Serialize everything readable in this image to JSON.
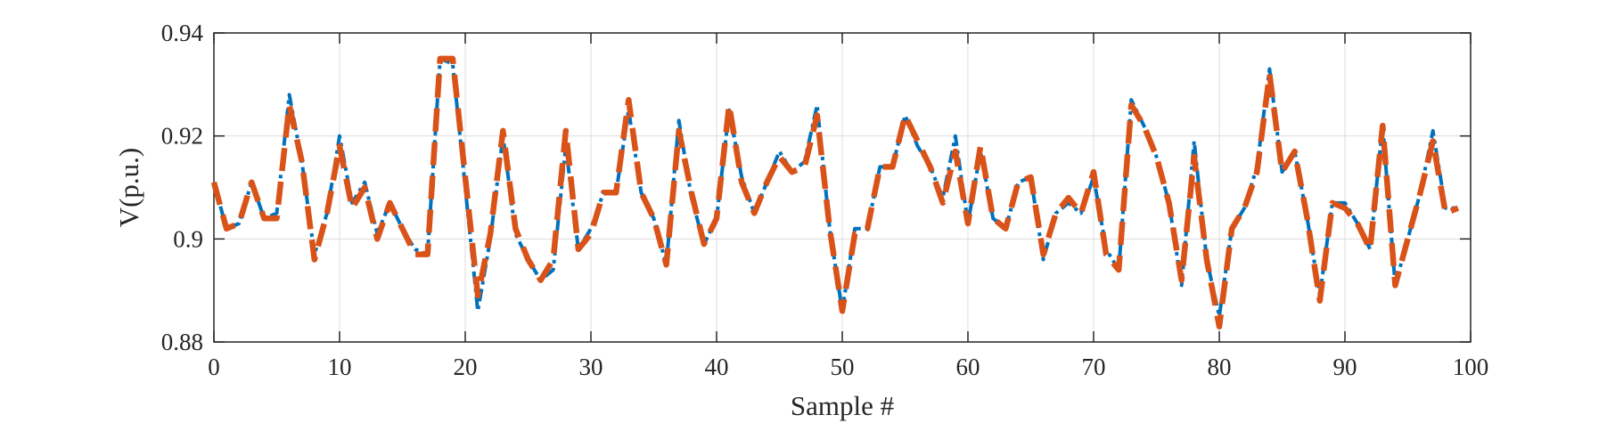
{
  "chart_data": {
    "type": "line",
    "title": "",
    "xlabel": "Sample #",
    "ylabel": "V(p.u.)",
    "xlim": [
      0,
      100
    ],
    "ylim": [
      0.88,
      0.94
    ],
    "xticks": [
      0,
      10,
      20,
      30,
      40,
      50,
      60,
      70,
      80,
      90,
      100
    ],
    "xtick_labels": [
      "0",
      "10",
      "20",
      "30",
      "40",
      "50",
      "60",
      "70",
      "80",
      "90",
      "100"
    ],
    "yticks": [
      0.88,
      0.9,
      0.92,
      0.94
    ],
    "ytick_labels": [
      "0.88",
      "0.9",
      "0.92",
      "0.94"
    ],
    "grid": true,
    "legend": "none",
    "x": [
      0,
      1,
      2,
      3,
      4,
      5,
      6,
      7,
      8,
      9,
      10,
      11,
      12,
      13,
      14,
      15,
      16,
      17,
      18,
      19,
      20,
      21,
      22,
      23,
      24,
      25,
      26,
      27,
      28,
      29,
      30,
      31,
      32,
      33,
      34,
      35,
      36,
      37,
      38,
      39,
      40,
      41,
      42,
      43,
      44,
      45,
      46,
      47,
      48,
      49,
      50,
      51,
      52,
      53,
      54,
      55,
      56,
      57,
      58,
      59,
      60,
      61,
      62,
      63,
      64,
      65,
      66,
      67,
      68,
      69,
      70,
      71,
      72,
      73,
      74,
      75,
      76,
      77,
      78,
      79,
      80,
      81,
      82,
      83,
      84,
      85,
      86,
      87,
      88,
      89,
      90,
      91,
      92,
      93,
      94,
      95,
      96,
      97,
      98,
      99
    ],
    "series": [
      {
        "color": "#0072BD",
        "linestyle": "dash-dot",
        "values": [
          0.911,
          0.902,
          0.903,
          0.911,
          0.904,
          0.905,
          0.928,
          0.915,
          0.897,
          0.905,
          0.92,
          0.907,
          0.911,
          0.901,
          0.907,
          0.902,
          0.898,
          0.897,
          0.935,
          0.934,
          0.91,
          0.886,
          0.9,
          0.92,
          0.901,
          0.896,
          0.892,
          0.894,
          0.918,
          0.898,
          0.902,
          0.909,
          0.909,
          0.925,
          0.909,
          0.904,
          0.895,
          0.923,
          0.908,
          0.899,
          0.904,
          0.925,
          0.912,
          0.905,
          0.911,
          0.917,
          0.913,
          0.915,
          0.926,
          0.902,
          0.886,
          0.902,
          0.902,
          0.914,
          0.914,
          0.924,
          0.918,
          0.914,
          0.908,
          0.92,
          0.903,
          0.917,
          0.904,
          0.902,
          0.911,
          0.912,
          0.896,
          0.905,
          0.907,
          0.905,
          0.912,
          0.898,
          0.894,
          0.927,
          0.922,
          0.916,
          0.907,
          0.891,
          0.919,
          0.896,
          0.885,
          0.902,
          0.906,
          0.914,
          0.933,
          0.913,
          0.917,
          0.904,
          0.889,
          0.907,
          0.907,
          0.903,
          0.898,
          0.922,
          0.891,
          0.9,
          0.909,
          0.921,
          0.906,
          0.906
        ]
      },
      {
        "color": "#D95319",
        "linestyle": "dashed",
        "values": [
          0.911,
          0.902,
          0.903,
          0.911,
          0.904,
          0.904,
          0.926,
          0.915,
          0.896,
          0.905,
          0.918,
          0.906,
          0.91,
          0.9,
          0.907,
          0.902,
          0.897,
          0.897,
          0.935,
          0.935,
          0.912,
          0.889,
          0.901,
          0.921,
          0.902,
          0.896,
          0.892,
          0.896,
          0.921,
          0.898,
          0.901,
          0.909,
          0.909,
          0.927,
          0.909,
          0.904,
          0.895,
          0.921,
          0.909,
          0.899,
          0.904,
          0.926,
          0.911,
          0.905,
          0.911,
          0.916,
          0.913,
          0.914,
          0.924,
          0.902,
          0.886,
          0.901,
          0.902,
          0.914,
          0.914,
          0.924,
          0.919,
          0.914,
          0.907,
          0.917,
          0.903,
          0.918,
          0.904,
          0.902,
          0.911,
          0.912,
          0.897,
          0.905,
          0.908,
          0.905,
          0.913,
          0.897,
          0.894,
          0.926,
          0.922,
          0.916,
          0.907,
          0.892,
          0.916,
          0.896,
          0.883,
          0.902,
          0.906,
          0.913,
          0.932,
          0.913,
          0.917,
          0.904,
          0.888,
          0.907,
          0.906,
          0.903,
          0.898,
          0.922,
          0.891,
          0.9,
          0.909,
          0.919,
          0.905,
          0.906
        ]
      }
    ]
  }
}
